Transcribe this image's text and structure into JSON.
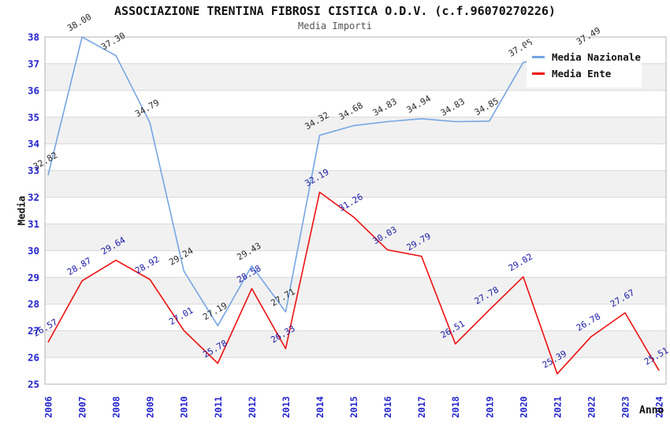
{
  "chart_data": {
    "type": "line",
    "title": "ASSOCIAZIONE TRENTINA FIBROSI CISTICA O.D.V. (c.f.96070270226)",
    "subtitle": "Media Importi",
    "xlabel": "Anno",
    "ylabel": "Media",
    "ylim": [
      25,
      38
    ],
    "y_ticks": [
      25,
      26,
      27,
      28,
      29,
      30,
      31,
      32,
      33,
      34,
      35,
      36,
      37,
      38
    ],
    "x": [
      2006,
      2007,
      2008,
      2009,
      2010,
      2011,
      2012,
      2013,
      2014,
      2015,
      2016,
      2017,
      2018,
      2019,
      2020,
      2021,
      2022,
      2023,
      2024
    ],
    "series": [
      {
        "name": "Media Nazionale",
        "color": "#75a6e3",
        "label_color": "#2a2a2a",
        "values": [
          32.82,
          38.0,
          37.3,
          34.79,
          29.24,
          27.19,
          29.43,
          27.71,
          34.32,
          34.68,
          34.83,
          34.94,
          34.83,
          34.85,
          37.05,
          null,
          37.49,
          null,
          null
        ]
      },
      {
        "name": "Media Ente",
        "color": "#ee1111",
        "label_color": "#1a1aa6",
        "values": [
          26.57,
          28.87,
          29.64,
          28.92,
          27.01,
          25.78,
          28.58,
          26.33,
          32.19,
          31.26,
          30.03,
          29.79,
          26.51,
          27.78,
          29.02,
          25.39,
          26.78,
          27.67,
          25.51
        ]
      }
    ],
    "legend_position": "top-right",
    "grid": "horizontal",
    "bands": true
  },
  "colors": {
    "tick_label": "#2424cc",
    "band": "#f1f1f1",
    "grid": "#d8d8d8",
    "plot_border": "#b3b3b3",
    "background": "#ffffff"
  }
}
